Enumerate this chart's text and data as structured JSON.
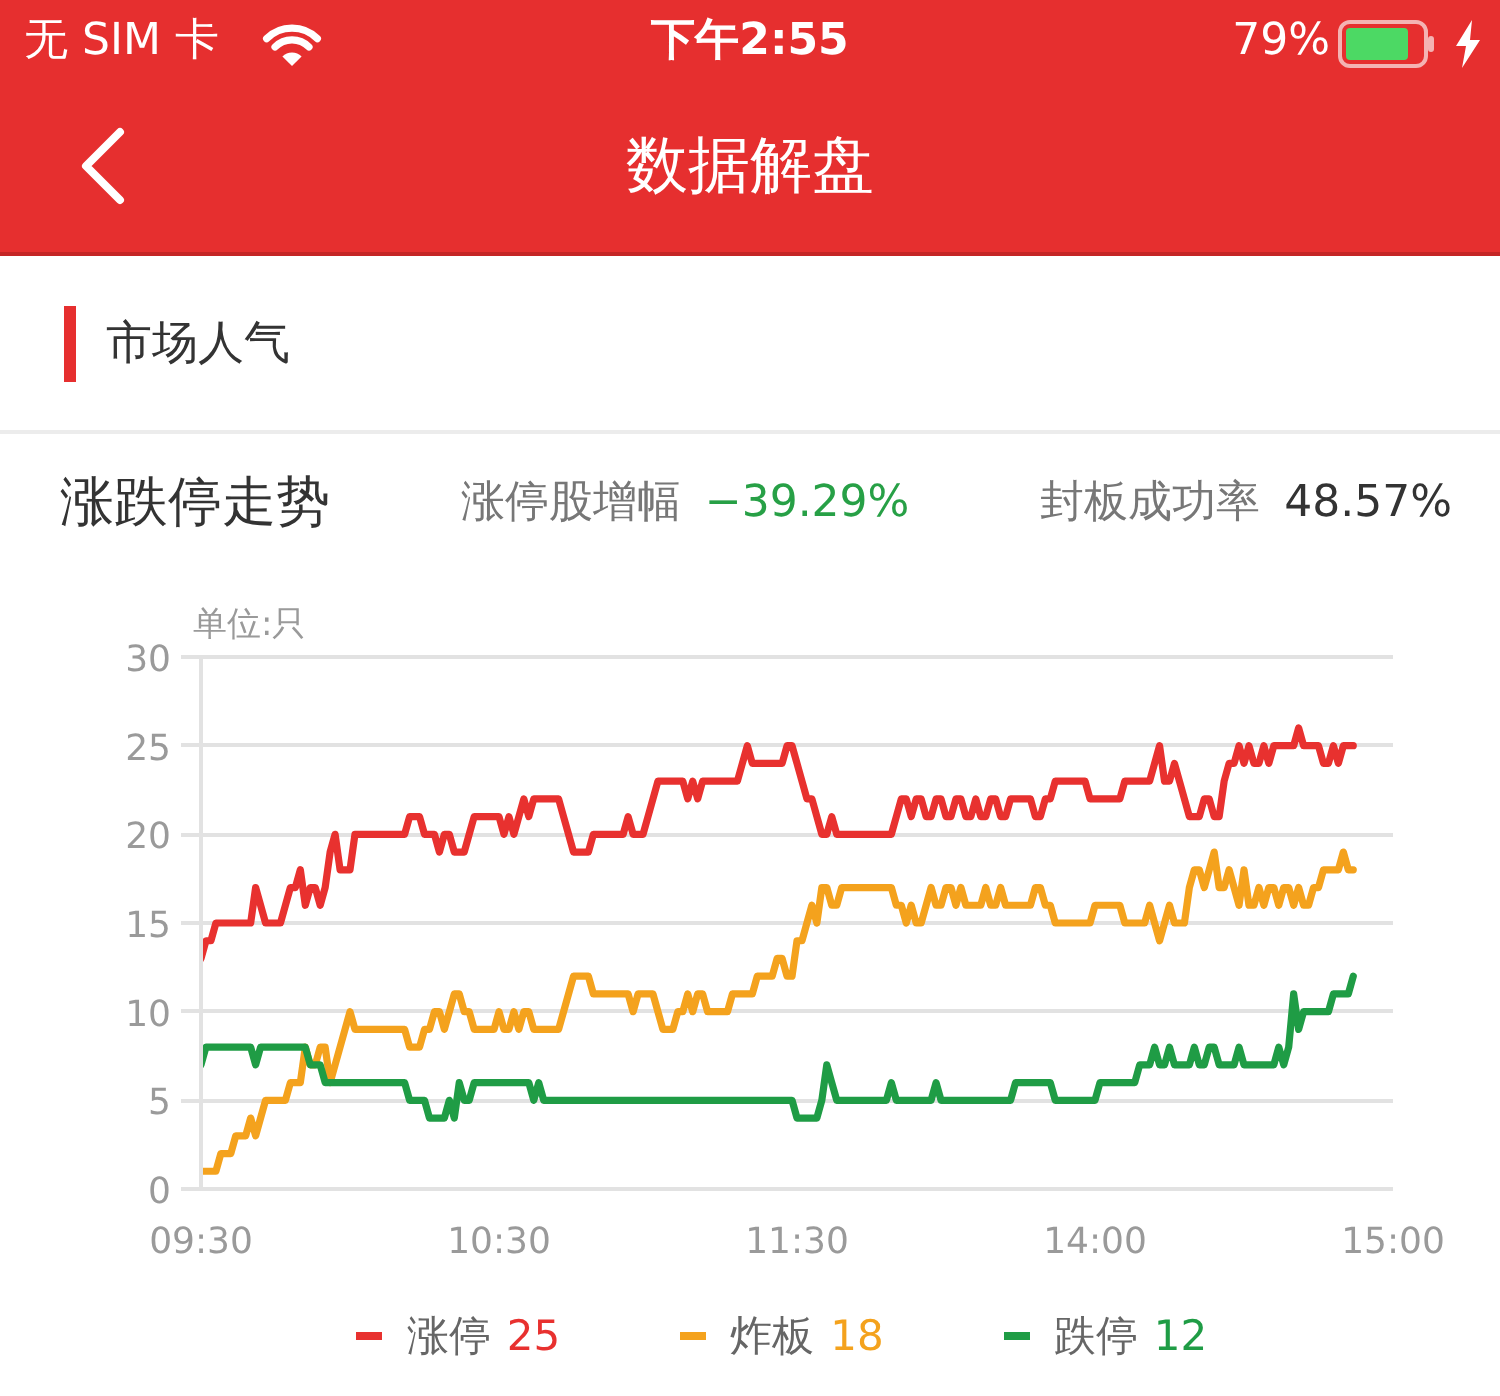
{
  "chart_data": {
    "type": "line",
    "title": "涨跌停走势",
    "ylabel": "单位:只",
    "annotations": [
      "无 SIM 卡",
      "下午2:55",
      "79%",
      "数据解盘",
      "市场人气",
      "涨停股增幅",
      "−39.29%",
      "封板成功率",
      "48.57%"
    ],
    "categories": [
      "09:30",
      null,
      null,
      null,
      null,
      null,
      null,
      null,
      null,
      null,
      null,
      null,
      null,
      null,
      null,
      null,
      null,
      null,
      null,
      null,
      null,
      null,
      null,
      null,
      null,
      null,
      null,
      null,
      null,
      null,
      null,
      null,
      null,
      null,
      null,
      null,
      null,
      null,
      null,
      null,
      null,
      null,
      null,
      null,
      null,
      null,
      null,
      null,
      null,
      null,
      null,
      null,
      null,
      null,
      null,
      null,
      null,
      null,
      null,
      null,
      "10:30",
      null,
      null,
      null,
      null,
      null,
      null,
      null,
      null,
      null,
      null,
      null,
      null,
      null,
      null,
      null,
      null,
      null,
      null,
      null,
      null,
      null,
      null,
      null,
      null,
      null,
      null,
      null,
      null,
      null,
      null,
      null,
      null,
      null,
      null,
      null,
      null,
      null,
      null,
      null,
      null,
      null,
      null,
      null,
      null,
      null,
      null,
      null,
      null,
      null,
      null,
      null,
      null,
      null,
      null,
      null,
      null,
      null,
      null,
      null,
      "11:30",
      null,
      null,
      null,
      null,
      null,
      null,
      null,
      null,
      null,
      null,
      null,
      null,
      null,
      null,
      null,
      null,
      null,
      null,
      null,
      null,
      null,
      null,
      null,
      null,
      null,
      null,
      null,
      null,
      null,
      null,
      null,
      null,
      null,
      null,
      null,
      null,
      null,
      null,
      null,
      null,
      null,
      null,
      null,
      null,
      null,
      null,
      null,
      null,
      null,
      null,
      null,
      null,
      null,
      null,
      null,
      null,
      null,
      null,
      null,
      "14:00",
      null,
      null,
      null,
      null,
      null,
      null,
      null,
      null,
      null,
      null,
      null,
      null,
      null,
      null,
      null,
      null,
      null,
      null,
      null,
      null,
      null,
      null,
      null,
      null,
      null,
      null,
      null,
      null,
      null,
      null,
      null,
      null,
      null,
      null,
      null,
      null,
      null,
      null,
      null,
      null,
      null,
      null,
      null,
      null,
      null,
      null,
      null,
      null,
      null,
      null,
      null,
      null,
      null,
      null,
      null,
      null,
      null,
      null,
      null,
      "15:00"
    ],
    "ylim": [
      0,
      30
    ],
    "yticks": [
      0,
      5,
      10,
      15,
      20,
      25,
      30
    ],
    "grid": "y",
    "legend": "bottom",
    "line_style": "solid",
    "series": [
      {
        "name": "涨停 25",
        "color": "#e8312f",
        "values": [
          13,
          14,
          14,
          15,
          15,
          15,
          15,
          15,
          15,
          15,
          15,
          17,
          16,
          15,
          15,
          15,
          15,
          16,
          17,
          17,
          18,
          16,
          17,
          17,
          16,
          17,
          19,
          20,
          18,
          18,
          18,
          20,
          20,
          20,
          20,
          20,
          20,
          20,
          20,
          20,
          20,
          20,
          21,
          21,
          21,
          20,
          20,
          20,
          19,
          20,
          20,
          19,
          19,
          19,
          20,
          21,
          21,
          21,
          21,
          21,
          21,
          20,
          21,
          20,
          21,
          22,
          21,
          22,
          22,
          22,
          22,
          22,
          22,
          21,
          20,
          19,
          19,
          19,
          19,
          20,
          20,
          20,
          20,
          20,
          20,
          20,
          21,
          20,
          20,
          20,
          21,
          22,
          23,
          23,
          23,
          23,
          23,
          23,
          22,
          23,
          22,
          23,
          23,
          23,
          23,
          23,
          23,
          23,
          23,
          24,
          25,
          24,
          24,
          24,
          24,
          24,
          24,
          24,
          25,
          25,
          24,
          23,
          22,
          22,
          21,
          20,
          20,
          21,
          20,
          20,
          20,
          20,
          20,
          20,
          20,
          20,
          20,
          20,
          20,
          20,
          21,
          22,
          22,
          21,
          22,
          22,
          21,
          21,
          22,
          22,
          21,
          21,
          22,
          22,
          21,
          21,
          22,
          21,
          21,
          22,
          22,
          21,
          21,
          22,
          22,
          22,
          22,
          22,
          21,
          21,
          22,
          22,
          23,
          23,
          23,
          23,
          23,
          23,
          23,
          22,
          22,
          22,
          22,
          22,
          22,
          22,
          23,
          23,
          23,
          23,
          23,
          23,
          24,
          25,
          23,
          23,
          24,
          23,
          22,
          21,
          21,
          21,
          22,
          22,
          21,
          21,
          23,
          24,
          24,
          25,
          24,
          25,
          24,
          24,
          25,
          24,
          25,
          25,
          25,
          25,
          25,
          26,
          25,
          25,
          25,
          25,
          24,
          24,
          25,
          24,
          25,
          25,
          25,
          null,
          null,
          null,
          null,
          null,
          null,
          null,
          null
        ]
      },
      {
        "name": "炸板 18",
        "color": "#f4a21d",
        "values": [
          1,
          1,
          1,
          1,
          2,
          2,
          2,
          3,
          3,
          3,
          4,
          3,
          4,
          5,
          5,
          5,
          5,
          5,
          6,
          6,
          6,
          8,
          7,
          7,
          8,
          8,
          6,
          7,
          8,
          9,
          10,
          9,
          9,
          9,
          9,
          9,
          9,
          9,
          9,
          9,
          9,
          9,
          8,
          8,
          8,
          9,
          9,
          10,
          10,
          9,
          10,
          11,
          11,
          10,
          10,
          9,
          9,
          9,
          9,
          9,
          10,
          9,
          9,
          10,
          9,
          10,
          10,
          9,
          9,
          9,
          9,
          9,
          9,
          10,
          11,
          12,
          12,
          12,
          12,
          11,
          11,
          11,
          11,
          11,
          11,
          11,
          11,
          10,
          11,
          11,
          11,
          11,
          10,
          9,
          9,
          9,
          10,
          10,
          11,
          10,
          11,
          11,
          10,
          10,
          10,
          10,
          10,
          11,
          11,
          11,
          11,
          11,
          12,
          12,
          12,
          12,
          13,
          13,
          12,
          12,
          14,
          14,
          15,
          16,
          15,
          17,
          17,
          16,
          16,
          17,
          17,
          17,
          17,
          17,
          17,
          17,
          17,
          17,
          17,
          17,
          16,
          16,
          15,
          16,
          15,
          15,
          16,
          17,
          16,
          16,
          17,
          17,
          16,
          17,
          16,
          16,
          16,
          16,
          17,
          16,
          16,
          17,
          16,
          16,
          16,
          16,
          16,
          16,
          17,
          17,
          16,
          16,
          15,
          15,
          15,
          15,
          15,
          15,
          15,
          15,
          16,
          16,
          16,
          16,
          16,
          16,
          15,
          15,
          15,
          15,
          15,
          16,
          15,
          14,
          15,
          16,
          15,
          15,
          15,
          17,
          18,
          18,
          17,
          18,
          19,
          17,
          17,
          18,
          17,
          16,
          18,
          16,
          16,
          17,
          16,
          17,
          17,
          16,
          17,
          17,
          16,
          17,
          16,
          16,
          17,
          17,
          18,
          18,
          18,
          18,
          19,
          18,
          18,
          null,
          null,
          null,
          null,
          null,
          null,
          null,
          null
        ]
      },
      {
        "name": "跌停 12",
        "color": "#1f9c45",
        "values": [
          7,
          8,
          8,
          8,
          8,
          8,
          8,
          8,
          8,
          8,
          8,
          7,
          8,
          8,
          8,
          8,
          8,
          8,
          8,
          8,
          8,
          8,
          7,
          7,
          7,
          6,
          6,
          6,
          6,
          6,
          6,
          6,
          6,
          6,
          6,
          6,
          6,
          6,
          6,
          6,
          6,
          6,
          5,
          5,
          5,
          5,
          4,
          4,
          4,
          4,
          5,
          4,
          6,
          5,
          5,
          6,
          6,
          6,
          6,
          6,
          6,
          6,
          6,
          6,
          6,
          6,
          6,
          5,
          6,
          5,
          5,
          5,
          5,
          5,
          5,
          5,
          5,
          5,
          5,
          5,
          5,
          5,
          5,
          5,
          5,
          5,
          5,
          5,
          5,
          5,
          5,
          5,
          5,
          5,
          5,
          5,
          5,
          5,
          5,
          5,
          5,
          5,
          5,
          5,
          5,
          5,
          5,
          5,
          5,
          5,
          5,
          5,
          5,
          5,
          5,
          5,
          5,
          5,
          5,
          5,
          4,
          4,
          4,
          4,
          4,
          5,
          7,
          6,
          5,
          5,
          5,
          5,
          5,
          5,
          5,
          5,
          5,
          5,
          5,
          6,
          5,
          5,
          5,
          5,
          5,
          5,
          5,
          5,
          6,
          5,
          5,
          5,
          5,
          5,
          5,
          5,
          5,
          5,
          5,
          5,
          5,
          5,
          5,
          5,
          6,
          6,
          6,
          6,
          6,
          6,
          6,
          6,
          5,
          5,
          5,
          5,
          5,
          5,
          5,
          5,
          5,
          6,
          6,
          6,
          6,
          6,
          6,
          6,
          6,
          7,
          7,
          7,
          8,
          7,
          7,
          8,
          7,
          7,
          7,
          7,
          8,
          7,
          7,
          8,
          8,
          7,
          7,
          7,
          7,
          8,
          7,
          7,
          7,
          7,
          7,
          7,
          7,
          8,
          7,
          8,
          11,
          9,
          10,
          10,
          10,
          10,
          10,
          10,
          11,
          11,
          11,
          11,
          12,
          null,
          null,
          null,
          null,
          null,
          null,
          null,
          null
        ]
      }
    ]
  }
}
